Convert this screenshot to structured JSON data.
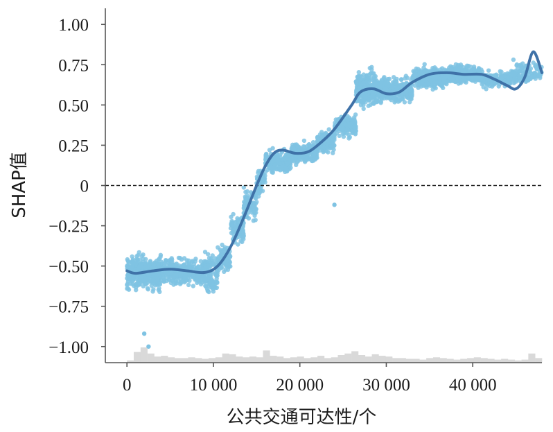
{
  "chart_data": {
    "type": "scatter",
    "xlabel": "公共交通可达性/个",
    "ylabel": "SHAP值",
    "xlim": [
      -2500,
      48000
    ],
    "ylim": [
      -1.1,
      1.1
    ],
    "x_ticks": [
      0,
      10000,
      20000,
      30000,
      40000
    ],
    "x_tick_labels": [
      "0",
      "10 000",
      "20 000",
      "30 000",
      "40 000"
    ],
    "y_ticks": [
      1.0,
      0.75,
      0.5,
      0.25,
      0,
      -0.25,
      -0.5,
      -0.75,
      -1.0
    ],
    "y_tick_labels": [
      "1.00",
      "0.75",
      "0.50",
      "0.25",
      "0",
      "−0.25",
      "−0.50",
      "−0.75",
      "−1.00"
    ],
    "reference_line": {
      "y": 0,
      "style": "dashed"
    },
    "grid": false,
    "colors": {
      "points": "#7fc3e3",
      "trend": "#3f72a8",
      "histogram": "#d9d9d9",
      "reference": "#222222"
    },
    "trend": {
      "x": [
        0,
        1000,
        3000,
        5000,
        7000,
        9000,
        10500,
        12000,
        13500,
        15000,
        16000,
        17000,
        18000,
        19500,
        21000,
        22500,
        24000,
        26000,
        27000,
        28500,
        30000,
        31500,
        33000,
        35000,
        37000,
        39000,
        41000,
        42500,
        44000,
        45000,
        46000,
        47000,
        48000
      ],
      "y": [
        -0.53,
        -0.545,
        -0.53,
        -0.52,
        -0.53,
        -0.54,
        -0.5,
        -0.38,
        -0.2,
        0.0,
        0.12,
        0.2,
        0.22,
        0.2,
        0.21,
        0.27,
        0.35,
        0.5,
        0.58,
        0.6,
        0.57,
        0.58,
        0.64,
        0.69,
        0.7,
        0.69,
        0.69,
        0.66,
        0.62,
        0.6,
        0.67,
        0.83,
        0.7
      ]
    },
    "point_bands": [
      {
        "x": [
          0,
          4000
        ],
        "center": -0.54,
        "spread": 0.17,
        "n": 380
      },
      {
        "x": [
          4000,
          9000
        ],
        "center": -0.54,
        "spread": 0.13,
        "n": 320
      },
      {
        "x": [
          9000,
          10500
        ],
        "center": -0.55,
        "spread": 0.2,
        "n": 110
      },
      {
        "x": [
          10500,
          12000
        ],
        "center": -0.45,
        "spread": 0.13,
        "n": 100
      },
      {
        "x": [
          12000,
          13500
        ],
        "center": -0.27,
        "spread": 0.17,
        "n": 100
      },
      {
        "x": [
          13500,
          15000
        ],
        "center": -0.12,
        "spread": 0.17,
        "n": 90
      },
      {
        "x": [
          15000,
          16000
        ],
        "center": 0.02,
        "spread": 0.12,
        "n": 60
      },
      {
        "x": [
          16000,
          19000
        ],
        "center": 0.15,
        "spread": 0.1,
        "n": 220
      },
      {
        "x": [
          19000,
          22000
        ],
        "center": 0.2,
        "spread": 0.1,
        "n": 210
      },
      {
        "x": [
          22000,
          24000
        ],
        "center": 0.27,
        "spread": 0.1,
        "n": 160
      },
      {
        "x": [
          24000,
          26500
        ],
        "center": 0.37,
        "spread": 0.11,
        "n": 170
      },
      {
        "x": [
          26500,
          29000
        ],
        "center": 0.6,
        "spread": 0.17,
        "n": 300
      },
      {
        "x": [
          29000,
          33000
        ],
        "center": 0.59,
        "spread": 0.12,
        "n": 380
      },
      {
        "x": [
          33000,
          37000
        ],
        "center": 0.67,
        "spread": 0.1,
        "n": 330
      },
      {
        "x": [
          37000,
          41000
        ],
        "center": 0.69,
        "spread": 0.09,
        "n": 280
      },
      {
        "x": [
          41000,
          44500
        ],
        "center": 0.66,
        "spread": 0.08,
        "n": 170
      },
      {
        "x": [
          44500,
          48000
        ],
        "center": 0.7,
        "spread": 0.1,
        "n": 130
      }
    ],
    "histogram_relative": [
      0.15,
      0.7,
      1.0,
      0.6,
      0.4,
      0.45,
      0.35,
      0.3,
      0.3,
      0.35,
      0.3,
      0.25,
      0.3,
      0.35,
      0.6,
      0.55,
      0.4,
      0.35,
      0.4,
      0.35,
      0.8,
      0.45,
      0.4,
      0.3,
      0.35,
      0.4,
      0.3,
      0.35,
      0.45,
      0.3,
      0.35,
      0.5,
      0.6,
      0.75,
      0.5,
      0.4,
      0.55,
      0.45,
      0.4,
      0.3,
      0.3,
      0.25,
      0.25,
      0.2,
      0.3,
      0.35,
      0.3,
      0.25,
      0.2,
      0.25,
      0.3,
      0.35,
      0.3,
      0.25,
      0.2,
      0.25,
      0.2,
      0.15,
      0.2,
      0.6,
      0.3
    ],
    "outliers": [
      {
        "x": 24000,
        "y": -0.12
      },
      {
        "x": 2500,
        "y": -1.0
      },
      {
        "x": 2000,
        "y": -0.92
      }
    ]
  }
}
